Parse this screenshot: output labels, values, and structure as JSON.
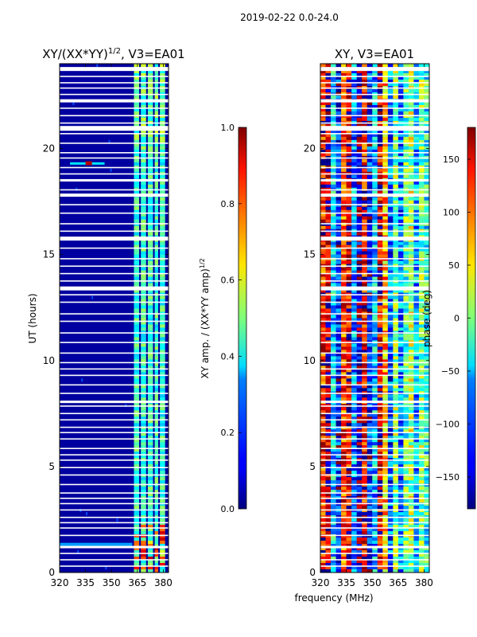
{
  "suptitle": "2019-02-22 0.0-24.0",
  "chart_data": [
    {
      "type": "heatmap",
      "title_main": "XY/(XX*YY)",
      "title_sup": "1/2",
      "title_tail": ", V3=EA01",
      "xlabel": "",
      "ylabel": "UT (hours)",
      "xlim": [
        320,
        383
      ],
      "ylim": [
        0,
        24
      ],
      "xticks": [
        320,
        335,
        350,
        365,
        380
      ],
      "yticks": [
        0,
        5,
        10,
        15,
        20
      ],
      "cmap": "jet",
      "grid": false,
      "colorbar": {
        "label_main": "XY amp. / (XX*YY amp)",
        "label_sup": "1/2",
        "range": [
          0.0,
          1.0
        ],
        "ticks": [
          "0.0",
          "0.2",
          "0.4",
          "0.6",
          "0.8",
          "1.0"
        ],
        "tick_values": [
          0.0,
          0.2,
          0.4,
          0.6,
          0.8,
          1.0
        ]
      }
    },
    {
      "type": "heatmap",
      "title": "XY, V3=EA01",
      "xlabel": "frequency (MHz)",
      "ylabel": "",
      "xlim": [
        320,
        383
      ],
      "ylim": [
        0,
        24
      ],
      "xticks": [
        320,
        335,
        350,
        365,
        380
      ],
      "yticks": [
        0,
        5,
        10,
        15,
        20
      ],
      "cmap": "jet",
      "grid": false,
      "colorbar": {
        "label": "phase (deg)",
        "range": [
          -180,
          180
        ],
        "ticks": [
          "−150",
          "−100",
          "−50",
          "0",
          "50",
          "100",
          "150"
        ],
        "tick_values": [
          -150,
          -100,
          -50,
          0,
          50,
          100,
          150
        ]
      }
    }
  ]
}
